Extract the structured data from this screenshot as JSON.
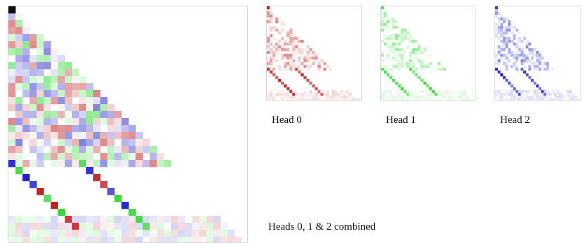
{
  "captions": {
    "head0": "Head 0",
    "head1": "Head 1",
    "head2": "Head 2",
    "combined": "Heads 0, 1 & 2 combined"
  },
  "colors": {
    "head0": "#c0181c",
    "head1": "#38d83c",
    "head2": "#1b1bc8",
    "background": "#ffffff",
    "border": "#d9d9d9"
  },
  "grid_size": 34
}
